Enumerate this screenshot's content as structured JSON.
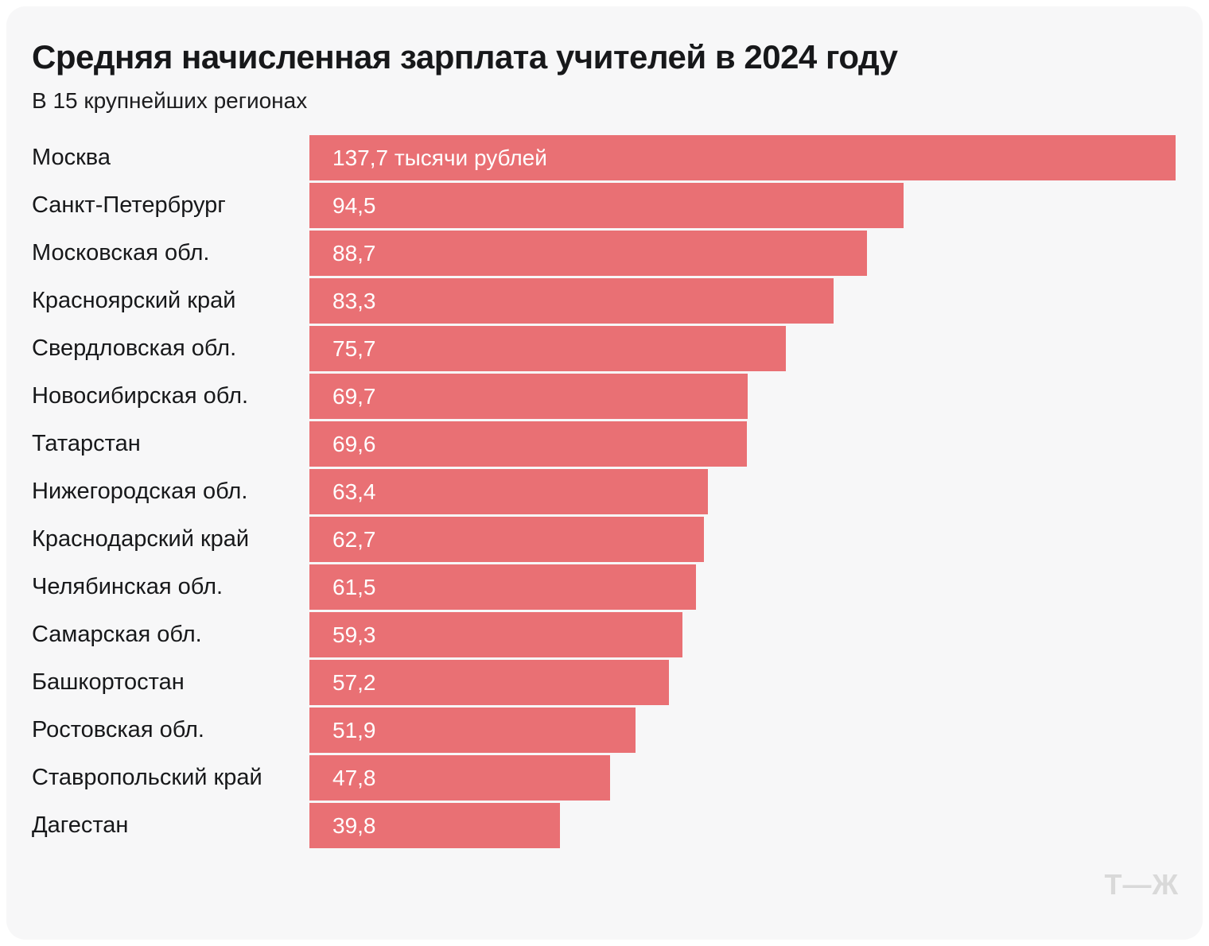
{
  "card": {
    "title": "Средняя начисленная зарплата учителей в 2024 году",
    "subtitle": "В 15 крупнейших регионах",
    "logo": "Т—Ж"
  },
  "colors": {
    "page_bg": "#ffffff",
    "card_bg": "#f7f7f8",
    "bar": "#e97074",
    "title_text": "#17181a",
    "bar_label_text": "#ffffff",
    "logo_text": "#d9d9d9"
  },
  "chart_data": {
    "type": "bar",
    "orientation": "horizontal",
    "title": "Средняя начисленная зарплата учителей в 2024 году",
    "subtitle": "В 15 крупнейших регионах",
    "unit": "тысячи рублей",
    "xlim": [
      0,
      137.7
    ],
    "grid": false,
    "legend": false,
    "categories": [
      "Москва",
      "Санкт-Петербрург",
      "Московская обл.",
      "Красноярский край",
      "Свердловская обл.",
      "Новосибирская обл.",
      "Татарстан",
      "Нижегородская обл.",
      "Краснодарский край",
      "Челябинская обл.",
      "Самарская обл.",
      "Башкортостан",
      "Ростовская обл.",
      "Ставропольский край",
      "Дагестан"
    ],
    "values": [
      137.7,
      94.5,
      88.7,
      83.3,
      75.7,
      69.7,
      69.6,
      63.4,
      62.7,
      61.5,
      59.3,
      57.2,
      51.9,
      47.8,
      39.8
    ],
    "value_labels": [
      "137,7 тысячи рублей",
      "94,5",
      "88,7",
      "83,3",
      "75,7",
      "69,7",
      "69,6",
      "63,4",
      "62,7",
      "61,5",
      "59,3",
      "57,2",
      "51,9",
      "47,8",
      "39,8"
    ]
  }
}
